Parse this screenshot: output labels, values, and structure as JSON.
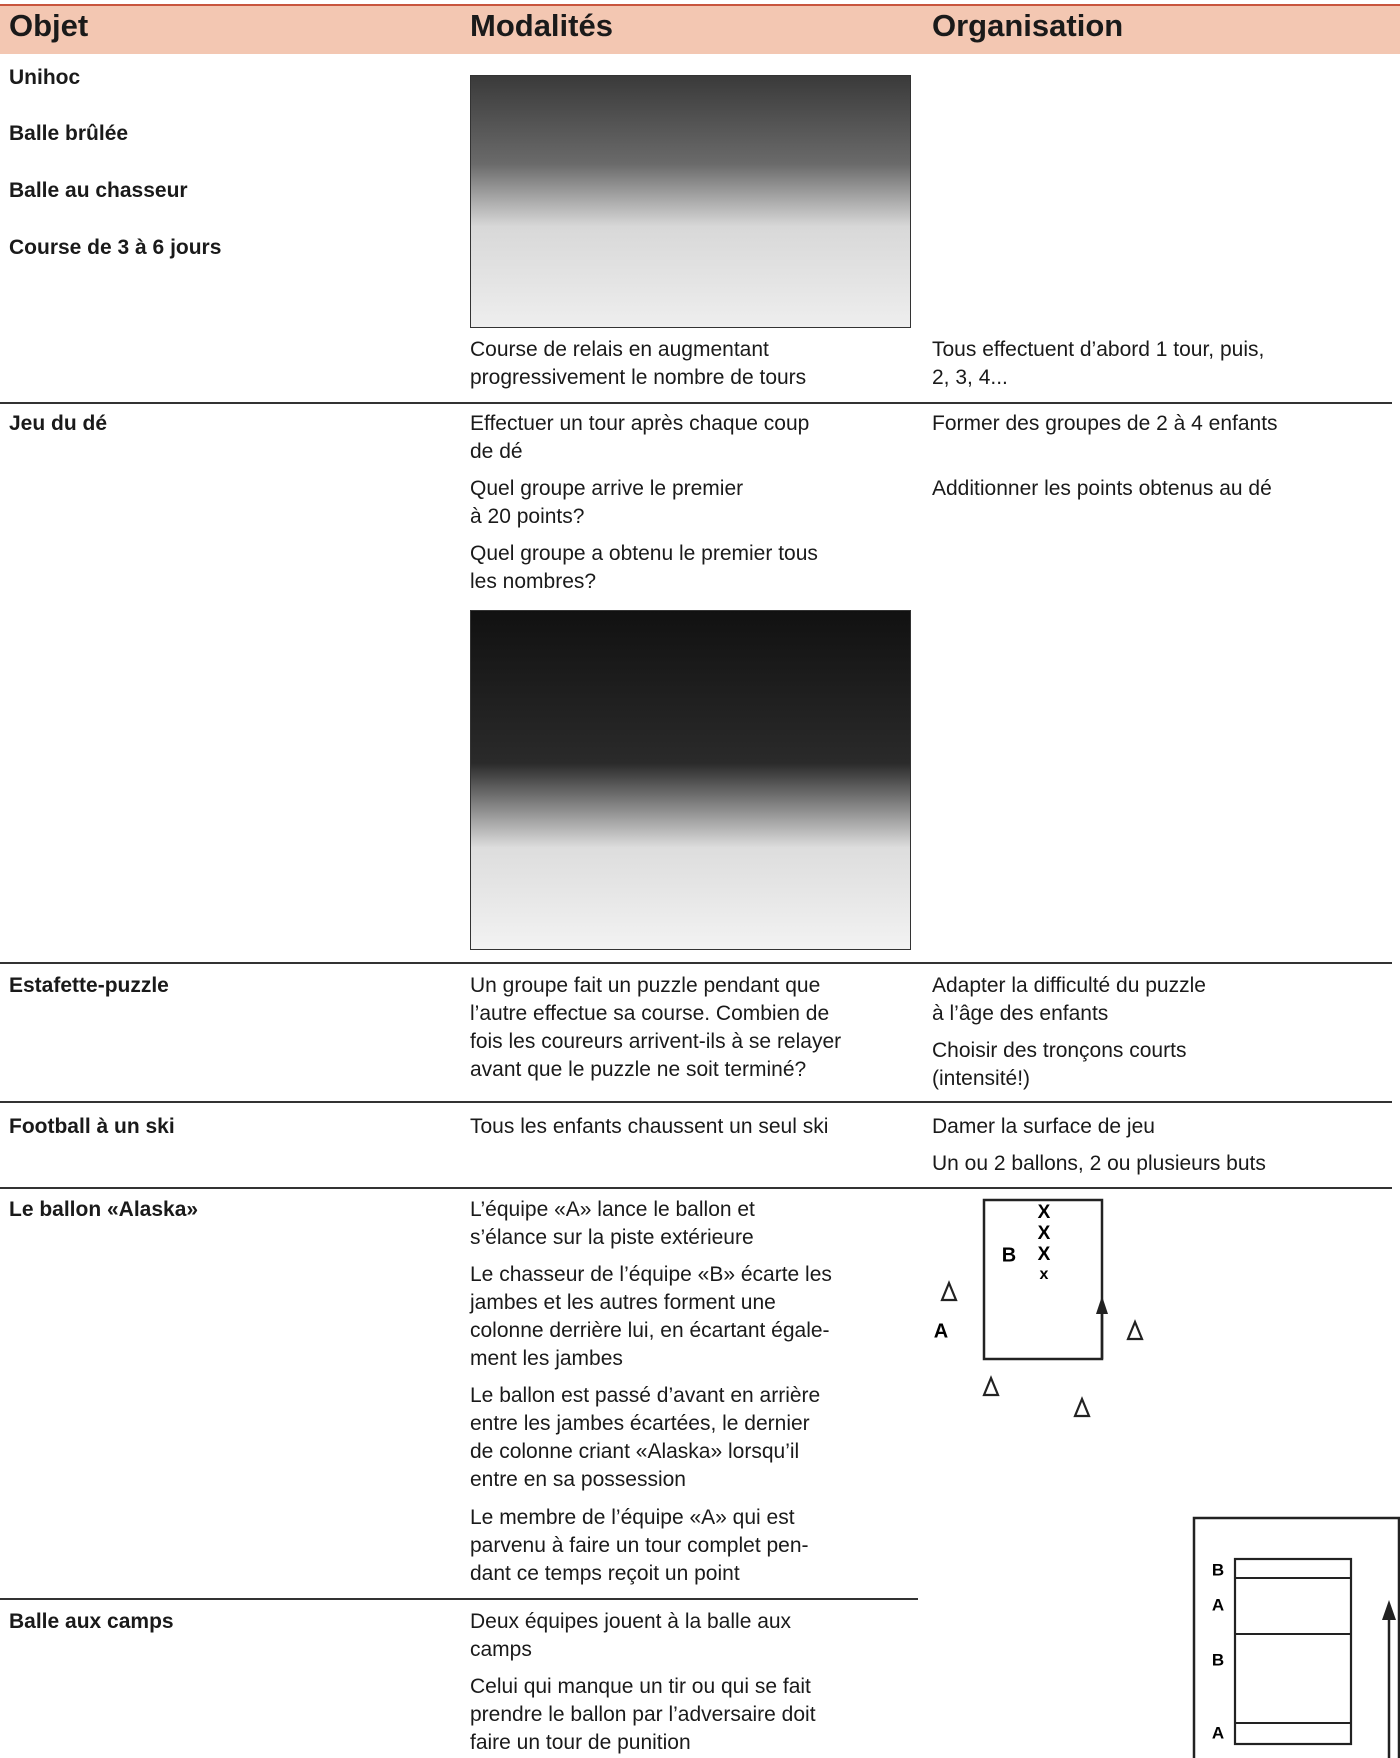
{
  "header": [
    "Objet",
    "Modalités",
    "Organisation"
  ],
  "rows": [
    {
      "objet": [
        [
          "Unihoc"
        ],
        [
          "Balle brûlée"
        ],
        [
          "Balle au chasseur"
        ],
        [
          "Course de 3 à 6 jours"
        ]
      ],
      "modalites": [
        [
          "Course de relais en augmentant",
          "progressivement le nombre de tours"
        ]
      ],
      "organisation": [
        [
          "Tous effectuent d’abord 1 tour, puis,",
          "2, 3, 4..."
        ]
      ]
    },
    {
      "objet": [
        [
          "Jeu du dé"
        ]
      ],
      "modalites": [
        [
          "Effectuer un tour après chaque coup",
          "de dé"
        ],
        [
          "Quel groupe arrive le premier",
          "à 20 points?"
        ],
        [
          "Quel groupe a obtenu le premier tous",
          "les nombres?"
        ]
      ],
      "organisation": [
        [
          "Former des groupes de 2 à 4 enfants"
        ],
        [
          "Additionner les points obtenus au dé"
        ]
      ]
    },
    {
      "objet": [
        [
          "Estafette-puzzle"
        ]
      ],
      "modalites": [
        [
          "Un groupe fait un puzzle pendant que",
          "l’autre effectue sa course. Combien de",
          "fois les coureurs arrivent-ils à se relayer",
          "avant que le puzzle ne soit terminé?"
        ]
      ],
      "organisation": [
        [
          "Adapter la difficulté du puzzle",
          "à l’âge des enfants"
        ],
        [
          "Choisir des tronçons courts",
          "(intensité!)"
        ]
      ]
    },
    {
      "objet": [
        [
          "Football à un ski"
        ]
      ],
      "modalites": [
        [
          "Tous les enfants chaussent un seul ski"
        ]
      ],
      "organisation": [
        [
          "Damer la surface de jeu"
        ],
        [
          "Un ou 2 ballons, 2 ou plusieurs buts"
        ]
      ]
    },
    {
      "objet": [
        [
          "Le ballon «Alaska»"
        ]
      ],
      "modalites": [
        [
          "L’équipe «A» lance le ballon et",
          "s’élance sur la piste extérieure"
        ],
        [
          "Le chasseur de l’équipe «B» écarte les",
          "jambes et les autres forment une",
          "colonne derrière lui, en écartant égale-",
          "ment les jambes"
        ],
        [
          "Le ballon est passé d’avant en arrière",
          "entre les jambes écartées, le dernier",
          "de colonne criant «Alaska» lorsqu’il",
          "entre en sa possession"
        ],
        [
          "Le membre de l’équipe «A» qui est",
          "parvenu à faire un tour complet pen-",
          "dant ce temps reçoit un point"
        ]
      ],
      "organisation": []
    },
    {
      "objet": [
        [
          "Balle aux camps"
        ]
      ],
      "modalites": [
        [
          "Deux équipes jouent à la balle aux",
          "camps"
        ],
        [
          "Celui qui manque un tir ou qui se fait",
          "prendre le ballon par l’adversaire doit",
          "faire un tour de punition"
        ]
      ],
      "organisation": []
    }
  ],
  "diagram1": {
    "marks": [
      "X",
      "X",
      "X",
      "x"
    ],
    "team_b": "B",
    "team_a": "A"
  },
  "diagram2": {
    "labels": [
      "B",
      "A",
      "B",
      "A"
    ]
  }
}
